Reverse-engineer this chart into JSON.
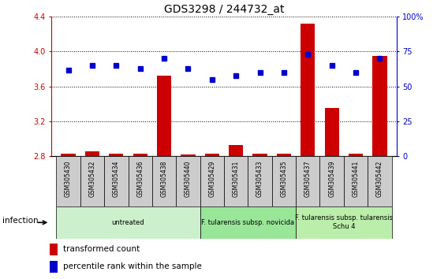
{
  "title": "GDS3298 / 244732_at",
  "samples": [
    "GSM305430",
    "GSM305432",
    "GSM305434",
    "GSM305436",
    "GSM305438",
    "GSM305440",
    "GSM305429",
    "GSM305431",
    "GSM305433",
    "GSM305435",
    "GSM305437",
    "GSM305439",
    "GSM305441",
    "GSM305442"
  ],
  "red_values": [
    2.83,
    2.86,
    2.83,
    2.83,
    3.72,
    2.82,
    2.83,
    2.93,
    2.83,
    2.83,
    4.32,
    3.35,
    2.83,
    3.95
  ],
  "blue_values_pct": [
    62,
    65,
    65,
    63,
    70,
    63,
    55,
    58,
    60,
    60,
    73,
    65,
    60,
    70
  ],
  "ylim_left": [
    2.8,
    4.4
  ],
  "ylim_right": [
    0,
    100
  ],
  "yticks_left": [
    2.8,
    3.2,
    3.6,
    4.0,
    4.4
  ],
  "yticks_right": [
    0,
    25,
    50,
    75,
    100
  ],
  "group_color_untreated": "#ccf0cc",
  "group_color_novicida": "#99e699",
  "group_color_tularensis": "#bbeeaa",
  "group_labels": [
    "untreated",
    "F. tularensis subsp. novicida",
    "F. tularensis subsp. tularensis\nSchu 4"
  ],
  "group_ranges": [
    [
      0,
      5
    ],
    [
      6,
      9
    ],
    [
      10,
      13
    ]
  ],
  "infection_label": "infection",
  "legend_red": "transformed count",
  "legend_blue": "percentile rank within the sample",
  "bar_color": "#cc0000",
  "dot_color": "#0000cc",
  "bg_color": "#ffffff",
  "sample_bg": "#cccccc",
  "left_axis_color": "#cc0000",
  "right_axis_color": "#0000cc"
}
